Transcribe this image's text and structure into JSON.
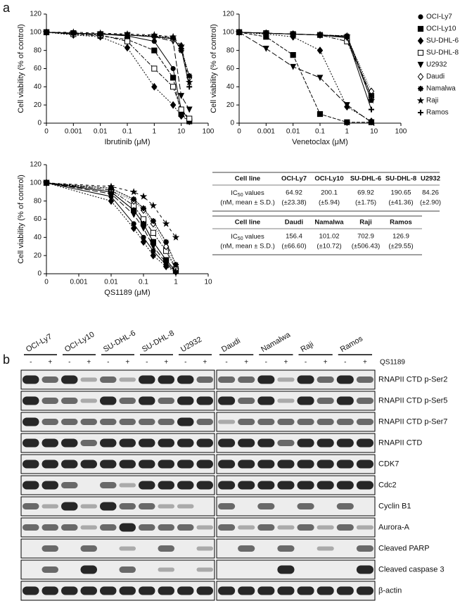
{
  "panel_labels": [
    "a",
    "b"
  ],
  "chart_data": [
    {
      "type": "line",
      "xscale": "log",
      "xlabel": "Ibrutinib (μM)",
      "ylabel": "Cell viability (% of control)",
      "x": [
        0,
        0.001,
        0.01,
        0.1,
        1,
        5,
        10,
        20
      ],
      "xlim": [
        0,
        100
      ],
      "xticks": [
        0,
        0.001,
        0.01,
        0.1,
        1,
        10,
        100
      ],
      "ylim": [
        0,
        120
      ],
      "yticks": [
        0,
        20,
        40,
        60,
        80,
        100,
        120
      ],
      "series": [
        {
          "marker": "circle",
          "values": [
            100,
            99,
            98,
            96,
            90,
            60,
            15,
            3
          ]
        },
        {
          "marker": "square",
          "values": [
            100,
            98,
            96,
            92,
            80,
            50,
            10,
            2
          ]
        },
        {
          "marker": "diamond",
          "values": [
            100,
            97,
            95,
            83,
            40,
            20,
            8,
            2
          ]
        },
        {
          "marker": "open-square",
          "values": [
            100,
            98,
            97,
            90,
            60,
            40,
            15,
            5
          ]
        },
        {
          "marker": "triangle",
          "values": [
            100,
            99,
            98,
            97,
            95,
            90,
            30,
            15
          ]
        },
        {
          "marker": "open-diamond",
          "values": [
            100,
            99,
            98,
            97,
            95,
            92,
            85,
            50
          ]
        },
        {
          "marker": "asterisk",
          "values": [
            100,
            99,
            98,
            97,
            96,
            94,
            80,
            52
          ]
        },
        {
          "marker": "star",
          "values": [
            100,
            100,
            99,
            98,
            97,
            95,
            85,
            45
          ]
        },
        {
          "marker": "plus",
          "values": [
            100,
            99,
            98,
            97,
            95,
            93,
            82,
            40
          ]
        }
      ]
    },
    {
      "type": "line",
      "xscale": "log",
      "xlabel": "Venetoclax (μM)",
      "ylabel": "Cell viability (% of control)",
      "legend": "right",
      "x": [
        0,
        0.001,
        0.01,
        0.1,
        1,
        8
      ],
      "xlim": [
        0,
        100
      ],
      "xticks": [
        0,
        0.001,
        0.01,
        0.1,
        1,
        10,
        100
      ],
      "ylim": [
        0,
        120
      ],
      "yticks": [
        0,
        20,
        40,
        60,
        80,
        100,
        120
      ],
      "series": [
        {
          "name": "OCI-Ly7",
          "marker": "circle",
          "values": [
            100,
            99,
            98,
            97,
            95,
            25
          ]
        },
        {
          "name": "OCI-Ly10",
          "marker": "square",
          "values": [
            100,
            95,
            75,
            10,
            1,
            1
          ]
        },
        {
          "name": "SU-DHL-6",
          "marker": "diamond",
          "values": [
            100,
            98,
            95,
            80,
            18,
            2
          ]
        },
        {
          "name": "SU-DHL-8",
          "marker": "open-square",
          "values": [
            100,
            99,
            98,
            97,
            90,
            30
          ]
        },
        {
          "name": "U2932",
          "marker": "triangle",
          "values": [
            100,
            82,
            62,
            50,
            20,
            1
          ]
        },
        {
          "name": "Daudi",
          "marker": "open-diamond",
          "values": [
            100,
            99,
            98,
            97,
            95,
            35
          ]
        },
        {
          "name": "Namalwa",
          "marker": "asterisk",
          "values": [
            100,
            99,
            98,
            97,
            96,
            30
          ]
        },
        {
          "name": "Raji",
          "marker": "star",
          "values": [
            100,
            99,
            98,
            97,
            96,
            25
          ]
        },
        {
          "name": "Ramos",
          "marker": "plus",
          "values": [
            100,
            99,
            98,
            97,
            94,
            15
          ]
        }
      ]
    },
    {
      "type": "line",
      "xscale": "log",
      "xlabel": "QS1189 (μM)",
      "ylabel": "Cell viability (% of control)",
      "x": [
        0,
        0.01,
        0.05,
        0.1,
        0.2,
        0.5,
        1
      ],
      "xlim": [
        0,
        10
      ],
      "xticks": [
        0,
        0.001,
        0.01,
        0.1,
        1,
        10
      ],
      "ylim": [
        0,
        120
      ],
      "yticks": [
        0,
        20,
        40,
        60,
        80,
        100,
        120
      ],
      "series": [
        {
          "marker": "circle",
          "values": [
            100,
            85,
            55,
            40,
            25,
            10,
            3
          ]
        },
        {
          "marker": "square",
          "values": [
            100,
            90,
            70,
            55,
            35,
            15,
            3
          ]
        },
        {
          "marker": "diamond",
          "values": [
            100,
            80,
            50,
            35,
            20,
            8,
            2
          ]
        },
        {
          "marker": "open-square",
          "values": [
            100,
            92,
            75,
            60,
            45,
            25,
            5
          ]
        },
        {
          "marker": "triangle",
          "values": [
            100,
            88,
            65,
            50,
            30,
            12,
            3
          ]
        },
        {
          "marker": "open-diamond",
          "values": [
            100,
            92,
            80,
            70,
            55,
            30,
            5
          ]
        },
        {
          "marker": "asterisk",
          "values": [
            100,
            94,
            82,
            72,
            58,
            35,
            10
          ]
        },
        {
          "marker": "star",
          "values": [
            100,
            96,
            90,
            85,
            75,
            55,
            40
          ]
        },
        {
          "marker": "plus",
          "values": [
            100,
            90,
            70,
            55,
            35,
            15,
            3
          ]
        }
      ]
    }
  ],
  "tables": [
    {
      "header": [
        "Cell line",
        "OCI-Ly7",
        "OCI-Ly10",
        "SU-DHL-6",
        "SU-DHL-8",
        "U2932"
      ],
      "row_label": [
        "IC",
        "50",
        " values",
        "(nM, mean ± S.D.)"
      ],
      "values": [
        64.92,
        200.1,
        69.92,
        190.65,
        84.26
      ],
      "sd": [
        "(±23.38)",
        "(±5.94)",
        "(±1.75)",
        "(±41.36)",
        "(±2.90)"
      ]
    },
    {
      "header": [
        "Cell line",
        "Daudi",
        "Namalwa",
        "Raji",
        "Ramos"
      ],
      "row_label": [
        "IC",
        "50",
        " values",
        "(nM, mean ± S.D.)"
      ],
      "values": [
        156.4,
        101.02,
        702.9,
        126.9
      ],
      "sd": [
        "(±66.60)",
        "(±10.72)",
        "(±506.43)",
        "(±29.55)"
      ]
    }
  ],
  "blot": {
    "treatment_label": "QS1189",
    "treatment_signs": [
      "-",
      "+"
    ],
    "groups": [
      [
        "OCI-Ly7",
        "OCI-Ly10",
        "SU-DHL-6",
        "SU-DHL-8",
        "U2932"
      ],
      [
        "Daudi",
        "Namalwa",
        "Raji",
        "Ramos"
      ]
    ],
    "rows": [
      {
        "label": "RNAPII CTD p-Ser2",
        "left": [
          3,
          2,
          3,
          1,
          2,
          1,
          3,
          3,
          3,
          2
        ],
        "right": [
          2,
          2,
          3,
          1,
          3,
          2,
          3,
          2
        ]
      },
      {
        "label": "RNAPII CTD p-Ser5",
        "left": [
          3,
          2,
          2,
          1,
          3,
          2,
          3,
          2,
          3,
          3
        ],
        "right": [
          3,
          2,
          3,
          1,
          3,
          2,
          3,
          2
        ]
      },
      {
        "label": "RNAPII CTD p-Ser7",
        "left": [
          3,
          2,
          2,
          2,
          2,
          2,
          2,
          2,
          3,
          2
        ],
        "right": [
          1,
          2,
          2,
          2,
          2,
          2,
          2,
          2
        ]
      },
      {
        "label": "RNAPII CTD",
        "left": [
          3,
          3,
          3,
          2,
          3,
          3,
          3,
          3,
          3,
          3
        ],
        "right": [
          3,
          3,
          3,
          2,
          3,
          3,
          3,
          3
        ]
      },
      {
        "label": "CDK7",
        "left": [
          3,
          3,
          3,
          3,
          3,
          3,
          3,
          3,
          3,
          3
        ],
        "right": [
          3,
          3,
          3,
          3,
          3,
          3,
          3,
          3
        ]
      },
      {
        "label": "Cdc2",
        "left": [
          3,
          3,
          2,
          0,
          2,
          1,
          3,
          3,
          3,
          3
        ],
        "right": [
          3,
          3,
          3,
          3,
          3,
          3,
          3,
          3
        ]
      },
      {
        "label": "Cyclin B1",
        "left": [
          2,
          1,
          3,
          1,
          3,
          2,
          2,
          1,
          1,
          0
        ],
        "right": [
          2,
          0,
          2,
          0,
          2,
          0,
          2,
          0
        ]
      },
      {
        "label": "Aurora-A",
        "left": [
          2,
          2,
          2,
          1,
          2,
          3,
          2,
          2,
          2,
          1
        ],
        "right": [
          2,
          1,
          2,
          1,
          2,
          1,
          2,
          1
        ]
      },
      {
        "label": "Cleaved PARP",
        "left": [
          0,
          2,
          0,
          2,
          0,
          1,
          0,
          2,
          0,
          1
        ],
        "right": [
          0,
          2,
          0,
          2,
          0,
          1,
          0,
          2
        ]
      },
      {
        "label": "Cleaved caspase 3",
        "left": [
          0,
          2,
          0,
          3,
          0,
          2,
          0,
          1,
          0,
          1
        ],
        "right": [
          0,
          0,
          0,
          3,
          0,
          0,
          0,
          3
        ]
      },
      {
        "label": "β-actin",
        "left": [
          3,
          3,
          3,
          3,
          3,
          3,
          3,
          3,
          3,
          3
        ],
        "right": [
          3,
          3,
          3,
          3,
          3,
          3,
          3,
          3
        ]
      }
    ]
  }
}
